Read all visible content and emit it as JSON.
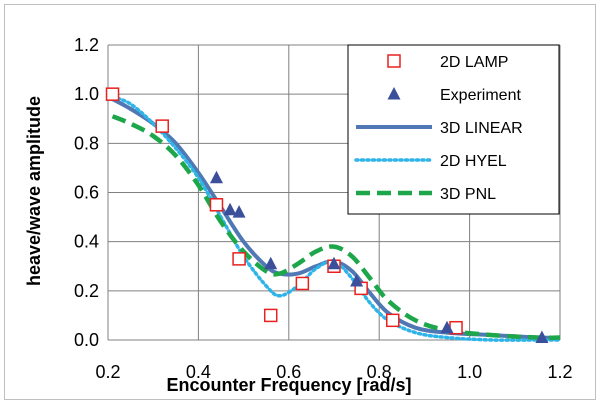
{
  "chart_data": {
    "type": "scatter",
    "title": "",
    "xlabel": "Encounter Frequency [rad/s]",
    "ylabel": "heave/wave amplitude",
    "xlim": [
      0.2,
      1.2
    ],
    "ylim": [
      0.0,
      1.2
    ],
    "x_ticks": [
      "0.2",
      "0.4",
      "0.6",
      "0.8",
      "1.0",
      "1.2"
    ],
    "y_ticks": [
      "0.0",
      "0.2",
      "0.4",
      "0.6",
      "0.8",
      "1.0",
      "1.2"
    ],
    "grid": "both",
    "legend_position": "top-right",
    "series": [
      {
        "name": "2D LAMP",
        "kind": "marker",
        "marker": "open-square",
        "color": "#e8201e",
        "x": [
          0.21,
          0.32,
          0.44,
          0.49,
          0.56,
          0.63,
          0.7,
          0.76,
          0.83,
          0.97
        ],
        "y": [
          1.0,
          0.87,
          0.55,
          0.33,
          0.1,
          0.23,
          0.3,
          0.21,
          0.08,
          0.05
        ]
      },
      {
        "name": "Experiment",
        "kind": "marker",
        "marker": "filled-triangle",
        "color": "#3b4f9a",
        "x": [
          0.44,
          0.47,
          0.49,
          0.56,
          0.7,
          0.75,
          0.95,
          1.16
        ],
        "y": [
          0.66,
          0.53,
          0.52,
          0.31,
          0.31,
          0.24,
          0.05,
          0.01
        ]
      },
      {
        "name": "3D LINEAR",
        "kind": "line",
        "style": "solid",
        "color": "#4f78b4",
        "x": [
          0.21,
          0.25,
          0.3,
          0.35,
          0.4,
          0.45,
          0.5,
          0.55,
          0.58,
          0.62,
          0.66,
          0.7,
          0.74,
          0.78,
          0.82,
          0.88,
          0.95,
          1.05,
          1.15,
          1.2
        ],
        "y": [
          0.98,
          0.94,
          0.88,
          0.8,
          0.68,
          0.54,
          0.4,
          0.3,
          0.27,
          0.27,
          0.3,
          0.32,
          0.28,
          0.19,
          0.11,
          0.05,
          0.03,
          0.02,
          0.01,
          0.01
        ]
      },
      {
        "name": "2D HYEL",
        "kind": "line",
        "style": "dotted",
        "color": "#2fb4e8",
        "x": [
          0.21,
          0.25,
          0.3,
          0.35,
          0.4,
          0.45,
          0.5,
          0.55,
          0.58,
          0.62,
          0.66,
          0.7,
          0.74,
          0.78,
          0.82,
          0.88,
          0.95,
          1.05,
          1.15,
          1.2
        ],
        "y": [
          0.99,
          0.96,
          0.88,
          0.78,
          0.66,
          0.5,
          0.34,
          0.22,
          0.18,
          0.22,
          0.29,
          0.32,
          0.25,
          0.15,
          0.08,
          0.03,
          0.01,
          0.0,
          0.0,
          0.0
        ]
      },
      {
        "name": "3D PNL",
        "kind": "line",
        "style": "dashed",
        "color": "#1ea64b",
        "x": [
          0.21,
          0.25,
          0.3,
          0.35,
          0.4,
          0.45,
          0.5,
          0.55,
          0.58,
          0.62,
          0.66,
          0.7,
          0.74,
          0.78,
          0.82,
          0.88,
          0.95,
          1.05,
          1.15,
          1.2
        ],
        "y": [
          0.91,
          0.88,
          0.83,
          0.75,
          0.63,
          0.48,
          0.36,
          0.28,
          0.27,
          0.31,
          0.36,
          0.38,
          0.34,
          0.25,
          0.16,
          0.08,
          0.04,
          0.02,
          0.01,
          0.01
        ]
      }
    ]
  }
}
